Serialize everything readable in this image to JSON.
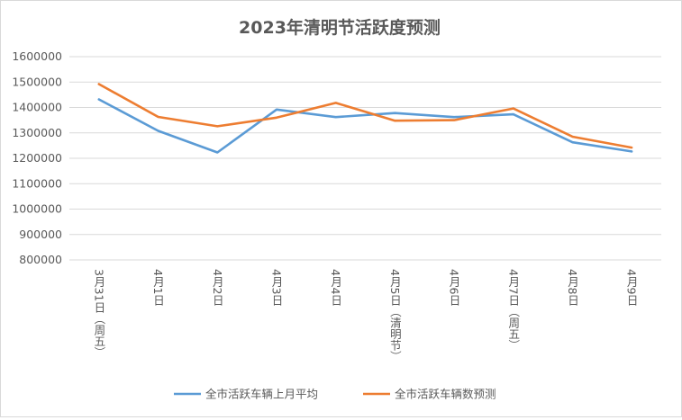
{
  "chart_data": {
    "type": "line",
    "title": "2023年清明节活跃度预测",
    "xlabel": "",
    "ylabel": "",
    "categories": [
      "3月31日（周五）",
      "4月1日",
      "4月2日",
      "4月3日",
      "4月4日",
      "4月5日（清明节）",
      "4月6日",
      "4月7日（周五）",
      "4月8日",
      "4月9日"
    ],
    "series": [
      {
        "name": "全市活跃车辆上月平均",
        "color": "#5b9bd5",
        "values": [
          1432000,
          1308000,
          1223000,
          1392000,
          1362000,
          1378000,
          1362000,
          1373000,
          1263000,
          1227000
        ]
      },
      {
        "name": "全市活跃车辆数预测",
        "color": "#ed7d31",
        "values": [
          1492000,
          1363000,
          1326000,
          1360000,
          1418000,
          1348000,
          1350000,
          1396000,
          1285000,
          1242000
        ]
      }
    ],
    "ylim": [
      800000,
      1600000
    ],
    "yticks": [
      "800000",
      "900000",
      "1000000",
      "1100000",
      "1200000",
      "1300000",
      "1400000",
      "1500000",
      "1600000"
    ],
    "grid": true,
    "legend_position": "bottom"
  }
}
